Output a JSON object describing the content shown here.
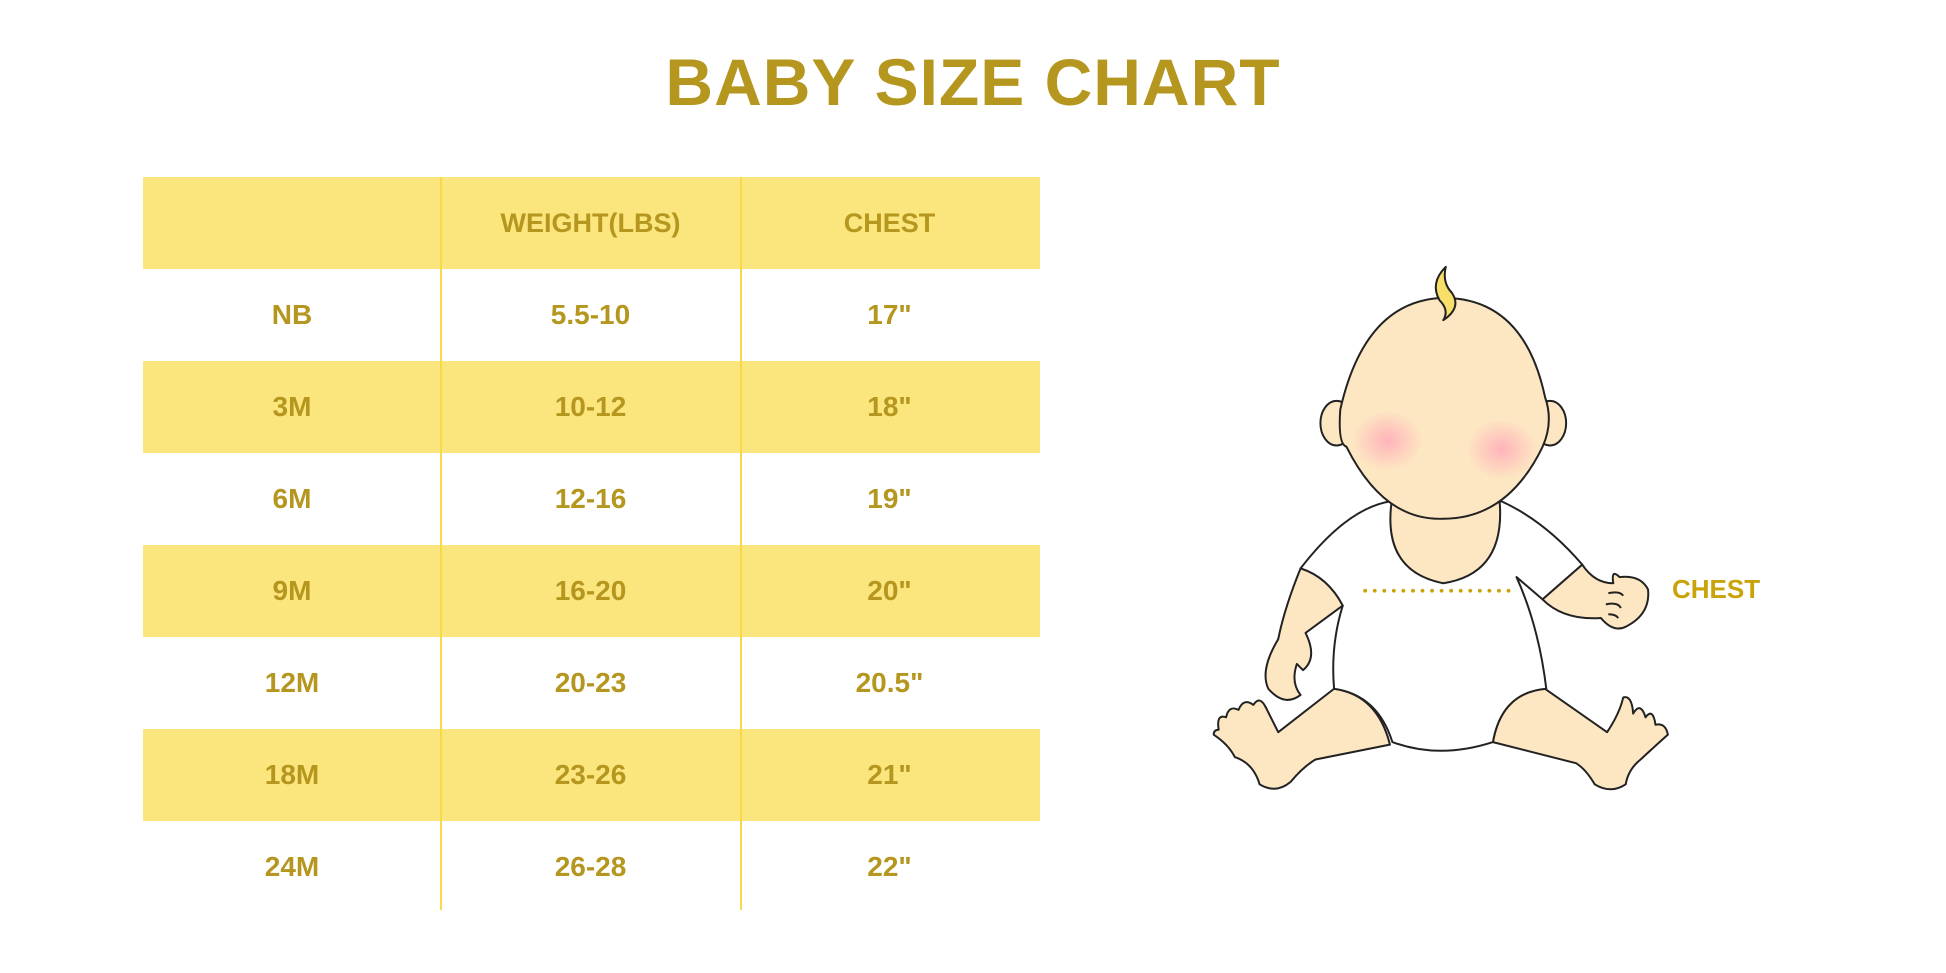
{
  "title": "BABY SIZE CHART",
  "table": {
    "headers": [
      "",
      "WEIGHT(LBS)",
      "CHEST"
    ],
    "rows": [
      [
        "NB",
        "5.5-10",
        "17\""
      ],
      [
        "3M",
        "10-12",
        "18\""
      ],
      [
        "6M",
        "12-16",
        "19\""
      ],
      [
        "9M",
        "16-20",
        "20\""
      ],
      [
        "12M",
        "20-23",
        "20.5\""
      ],
      [
        "18M",
        "23-26",
        "21\""
      ],
      [
        "24M",
        "26-28",
        "22\""
      ]
    ]
  },
  "illustration": {
    "chest_label": "CHEST"
  },
  "colors": {
    "text": "#B5961F",
    "band": "#FBE57D",
    "skin": "#FDE6C2"
  }
}
